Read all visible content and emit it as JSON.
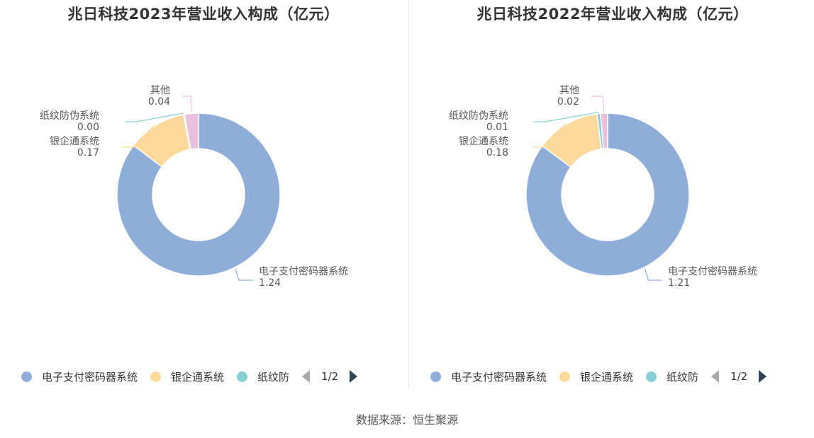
{
  "source": "数据来源：恒生聚源",
  "chart_data": [
    {
      "type": "pie",
      "title": "兆日科技2023年营业收入构成（亿元）",
      "series": [
        {
          "name": "电子支付密码器系统",
          "value": 1.24,
          "label": "1.24",
          "color": "#8eadd9"
        },
        {
          "name": "银企通系统",
          "value": 0.17,
          "label": "0.17",
          "color": "#fcd99a"
        },
        {
          "name": "纸纹防伪系统",
          "value": 0.003,
          "label": "0.00",
          "color": "#85d0d4"
        },
        {
          "name": "其他",
          "value": 0.04,
          "label": "0.04",
          "color": "#eabfde"
        }
      ],
      "legend": {
        "items": [
          {
            "name": "电子支付密码器系统",
            "color": "#8eadd9"
          },
          {
            "name": "银企通系统",
            "color": "#fcd99a"
          },
          {
            "name": "纸纹防",
            "color": "#85d0d4"
          }
        ],
        "page": "1/2",
        "position": "bottom"
      }
    },
    {
      "type": "pie",
      "title": "兆日科技2022年营业收入构成（亿元）",
      "series": [
        {
          "name": "电子支付密码器系统",
          "value": 1.21,
          "label": "1.21",
          "color": "#8eadd9"
        },
        {
          "name": "银企通系统",
          "value": 0.18,
          "label": "0.18",
          "color": "#fcd99a"
        },
        {
          "name": "纸纹防伪系统",
          "value": 0.01,
          "label": "0.01",
          "color": "#85d0d4"
        },
        {
          "name": "其他",
          "value": 0.02,
          "label": "0.02",
          "color": "#eabfde"
        }
      ],
      "legend": {
        "items": [
          {
            "name": "电子支付密码器系统",
            "color": "#8eadd9"
          },
          {
            "name": "银企通系统",
            "color": "#fcd99a"
          },
          {
            "name": "纸纹防",
            "color": "#85d0d4"
          }
        ],
        "page": "1/2",
        "position": "bottom"
      }
    }
  ]
}
